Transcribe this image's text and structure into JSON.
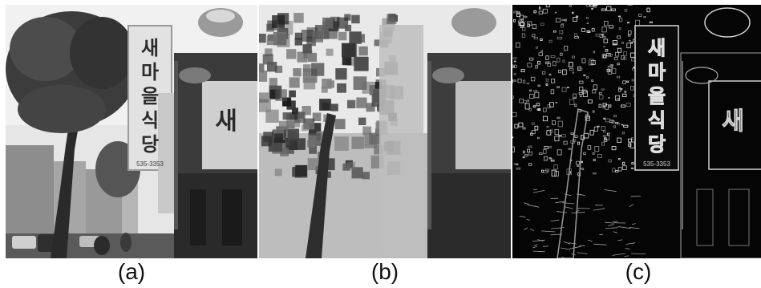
{
  "panels": [
    {
      "id": "a",
      "caption": "(a)",
      "sign_characters": [
        "새",
        "마",
        "을",
        "식",
        "당"
      ],
      "sign_phone": "535-3353",
      "facade_character": "새"
    },
    {
      "id": "b",
      "caption": "(b)",
      "sign_characters": [],
      "sign_phone": "",
      "facade_character": ""
    },
    {
      "id": "c",
      "caption": "(c)",
      "sign_characters": [
        "새",
        "마",
        "을",
        "식",
        "당"
      ],
      "sign_phone": "535-3353",
      "facade_character": "새"
    }
  ],
  "colors": {
    "background": "#ffffff",
    "caption_text": "#111111"
  }
}
